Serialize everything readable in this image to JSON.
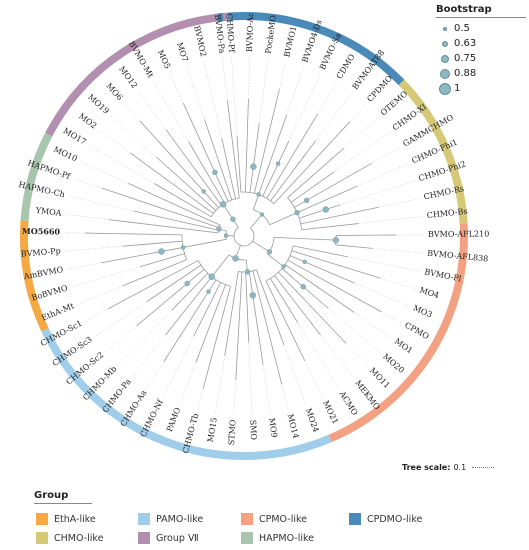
{
  "legend": {
    "bootstrap_title": "Bootstrap",
    "bootstrap_values": [
      "0.5",
      "0.63",
      "0.75",
      "0.88",
      "1"
    ],
    "scale_title": "Tree scale:",
    "scale_value": "0.1",
    "group_title": "Group"
  },
  "groups": [
    {
      "id": "etha",
      "label": "EthA-like",
      "color": "#f5a945"
    },
    {
      "id": "pamo",
      "label": "PAMO-like",
      "color": "#9fcdea"
    },
    {
      "id": "cpmo",
      "label": "CPMO-like",
      "color": "#f2a283"
    },
    {
      "id": "cpdmo",
      "label": "CPDMO-like",
      "color": "#4a8ab9"
    },
    {
      "id": "chmo",
      "label": "CHMO-like",
      "color": "#d5c877"
    },
    {
      "id": "g7",
      "label": "Group Ⅶ",
      "color": "#b28fae"
    },
    {
      "id": "hapmo",
      "label": "HAPMO-like",
      "color": "#a8c6ae"
    }
  ],
  "leaves": [
    {
      "label": "CHMO-Pf",
      "group": "cpdmo"
    },
    {
      "label": "BVMO-Ac",
      "group": "cpdmo"
    },
    {
      "label": "PockeMO",
      "group": "cpdmo"
    },
    {
      "label": "BVMO1",
      "group": "cpdmo"
    },
    {
      "label": "BVMO4-Ds",
      "group": "cpdmo"
    },
    {
      "label": "BVMO-Sa",
      "group": "cpdmo"
    },
    {
      "label": "CDMO",
      "group": "cpdmo"
    },
    {
      "label": "BVMOAT88",
      "group": "cpdmo"
    },
    {
      "label": "CPDMO",
      "group": "cpdmo"
    },
    {
      "label": "OTEMO",
      "group": "chmo"
    },
    {
      "label": "CHMO-XI",
      "group": "chmo"
    },
    {
      "label": "GAMMCHMO",
      "group": "chmo"
    },
    {
      "label": "CHMO-Phi1",
      "group": "chmo"
    },
    {
      "label": "CHMO-Phi2",
      "group": "chmo"
    },
    {
      "label": "CHMO-Rs",
      "group": "chmo"
    },
    {
      "label": "CHMO-Bs",
      "group": "chmo"
    },
    {
      "label": "BVMO-AFL210",
      "group": "cpmo"
    },
    {
      "label": "BVMO-AFL838",
      "group": "cpmo"
    },
    {
      "label": "BVMO-Pl",
      "group": "cpmo"
    },
    {
      "label": "MO4",
      "group": "cpmo"
    },
    {
      "label": "MO3",
      "group": "cpmo"
    },
    {
      "label": "CPMO",
      "group": "cpmo"
    },
    {
      "label": "MO1",
      "group": "cpmo"
    },
    {
      "label": "MO20",
      "group": "cpmo"
    },
    {
      "label": "MO11",
      "group": "cpmo"
    },
    {
      "label": "MEKMO",
      "group": "cpmo"
    },
    {
      "label": "ACMO",
      "group": "cpmo"
    },
    {
      "label": "MO21",
      "group": "cpmo"
    },
    {
      "label": "MO24",
      "group": "pamo"
    },
    {
      "label": "MO14",
      "group": "pamo"
    },
    {
      "label": "MO9",
      "group": "pamo"
    },
    {
      "label": "SMO",
      "group": "pamo"
    },
    {
      "label": "STMO",
      "group": "pamo"
    },
    {
      "label": "MO15",
      "group": "pamo"
    },
    {
      "label": "CHMO-Tb",
      "group": "pamo"
    },
    {
      "label": "PAMO",
      "group": "pamo"
    },
    {
      "label": "CHMO-Nf",
      "group": "pamo"
    },
    {
      "label": "CHMO-Aa",
      "group": "pamo"
    },
    {
      "label": "CHMO-Pa",
      "group": "pamo"
    },
    {
      "label": "CHMO-Mb",
      "group": "pamo"
    },
    {
      "label": "CHMO-Sc2",
      "group": "pamo"
    },
    {
      "label": "CHMO-Sc3",
      "group": "pamo"
    },
    {
      "label": "CHMO-Sc1",
      "group": "pamo"
    },
    {
      "label": "EthA-Mt",
      "group": "etha"
    },
    {
      "label": "BoBVMO",
      "group": "etha"
    },
    {
      "label": "AmBVMO",
      "group": "etha"
    },
    {
      "label": "BVMO-Pp",
      "group": "etha"
    },
    {
      "label": "MO5660",
      "group": "etha",
      "bold": true
    },
    {
      "label": "YMOA",
      "group": "hapmo"
    },
    {
      "label": "HAPMO-Ch",
      "group": "hapmo"
    },
    {
      "label": "HAPMO-Pf",
      "group": "hapmo"
    },
    {
      "label": "MO10",
      "group": "hapmo"
    },
    {
      "label": "MO17",
      "group": "g7"
    },
    {
      "label": "MO2",
      "group": "g7"
    },
    {
      "label": "MO19",
      "group": "g7"
    },
    {
      "label": "MO6",
      "group": "g7"
    },
    {
      "label": "MO12",
      "group": "g7"
    },
    {
      "label": "BVMO-Mt",
      "group": "g7"
    },
    {
      "label": "MO5",
      "group": "g7"
    },
    {
      "label": "MO7",
      "group": "g7"
    },
    {
      "label": "BVMO2",
      "group": "g7"
    },
    {
      "label": "BVMO-Pa",
      "group": "g7"
    }
  ]
}
